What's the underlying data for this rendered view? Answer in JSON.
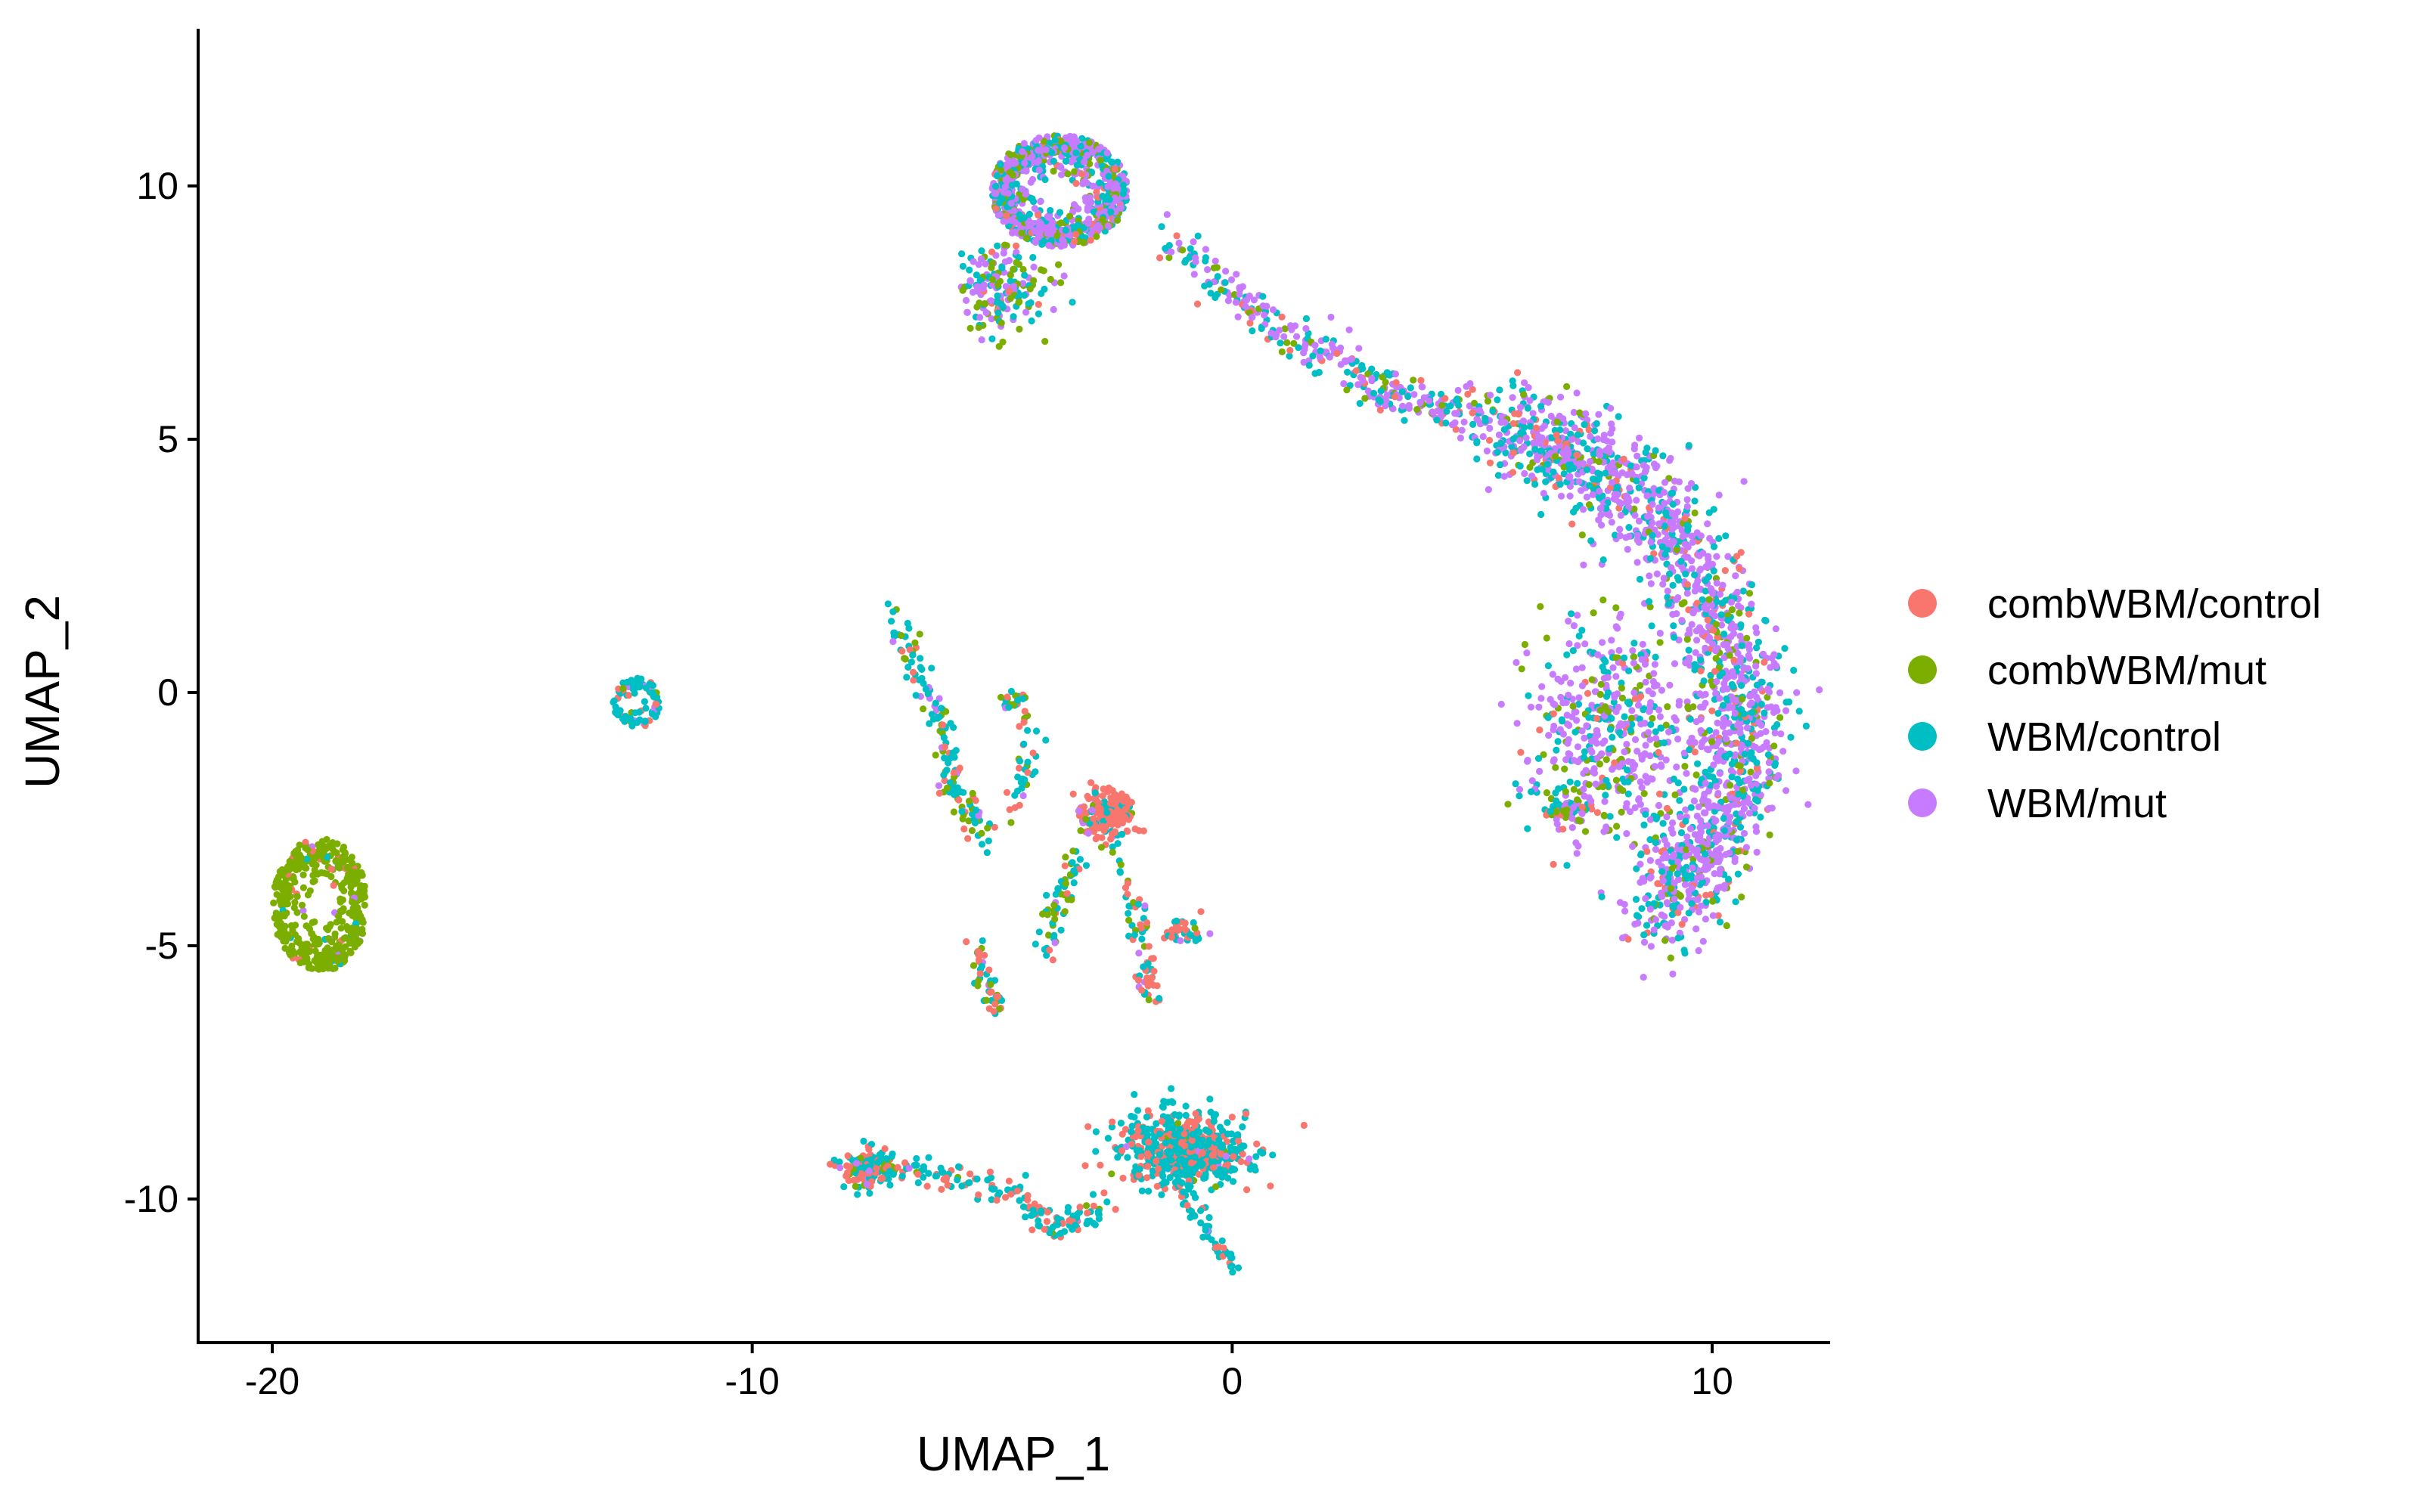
{
  "chart_data": {
    "type": "scatter",
    "title": "",
    "xlabel": "UMAP_1",
    "ylabel": "UMAP_2",
    "xlim": [
      -21.5,
      12.5
    ],
    "ylim": [
      -12.8,
      13.2
    ],
    "xticks": [
      -20,
      -10,
      0,
      10
    ],
    "yticks": [
      -10,
      -5,
      0,
      5,
      10
    ],
    "xtick_labels": [
      "-20",
      "-10",
      "0",
      "10"
    ],
    "ytick_labels": [
      "-10",
      "-5",
      "0",
      "5",
      "10"
    ],
    "grid": false,
    "legend": {
      "position": "right"
    },
    "series": [
      {
        "name": "combWBM/control",
        "color": "#F8766D"
      },
      {
        "name": "combWBM/mut",
        "color": "#7CAE00"
      },
      {
        "name": "WBM/control",
        "color": "#00BFC4"
      },
      {
        "name": "WBM/mut",
        "color": "#C77CFF"
      }
    ],
    "clusters": [
      {
        "id": "top-loop",
        "center": [
          -3.6,
          9.9
        ],
        "spread": [
          1.3,
          1.0
        ],
        "shape": "ring",
        "n": 900,
        "mix": [
          0.05,
          0.15,
          0.3,
          0.5
        ]
      },
      {
        "id": "top-tail",
        "center": [
          -4.8,
          8.0
        ],
        "spread": [
          0.9,
          0.8
        ],
        "shape": "blob",
        "n": 180,
        "mix": [
          0.05,
          0.3,
          0.3,
          0.35
        ]
      },
      {
        "id": "bridge",
        "path": [
          [
            -1.5,
            9.0
          ],
          [
            0.5,
            7.5
          ],
          [
            2.0,
            6.6
          ],
          [
            3.5,
            5.8
          ],
          [
            5.5,
            5.4
          ]
        ],
        "width": 0.35,
        "n": 320,
        "mix": [
          0.08,
          0.12,
          0.3,
          0.5
        ]
      },
      {
        "id": "right-arc",
        "path": [
          [
            5.5,
            5.3
          ],
          [
            7.5,
            4.6
          ],
          [
            9.2,
            3.2
          ],
          [
            10.3,
            1.0
          ],
          [
            10.7,
            -1.0
          ],
          [
            10.0,
            -3.0
          ],
          [
            8.8,
            -4.4
          ]
        ],
        "width": 0.8,
        "n": 1700,
        "mix": [
          0.07,
          0.08,
          0.3,
          0.55
        ]
      },
      {
        "id": "right-inner",
        "center": [
          8.0,
          -0.8
        ],
        "spread": [
          1.6,
          2.0
        ],
        "shape": "blob",
        "n": 500,
        "mix": [
          0.05,
          0.15,
          0.25,
          0.55
        ]
      },
      {
        "id": "right-spur",
        "center": [
          7.0,
          -2.3
        ],
        "spread": [
          0.5,
          0.3
        ],
        "shape": "blob",
        "n": 60,
        "mix": [
          0.1,
          0.3,
          0.3,
          0.3
        ]
      },
      {
        "id": "left-ring",
        "center": [
          -19.0,
          -4.2
        ],
        "spread": [
          0.9,
          1.2
        ],
        "shape": "ring",
        "n": 480,
        "mix": [
          0.03,
          0.92,
          0.02,
          0.03
        ]
      },
      {
        "id": "small-ring",
        "center": [
          -12.4,
          -0.2
        ],
        "spread": [
          0.45,
          0.45
        ],
        "shape": "ring",
        "n": 90,
        "mix": [
          0.1,
          0.05,
          0.75,
          0.1
        ]
      },
      {
        "id": "mid-stream-1",
        "path": [
          [
            -7.0,
            1.5
          ],
          [
            -6.2,
            -0.3
          ],
          [
            -5.8,
            -1.8
          ],
          [
            -5.2,
            -2.8
          ]
        ],
        "width": 0.25,
        "n": 150,
        "mix": [
          0.15,
          0.25,
          0.55,
          0.05
        ]
      },
      {
        "id": "mid-stream-2",
        "path": [
          [
            -4.8,
            -0.2
          ],
          [
            -4.4,
            -0.1
          ],
          [
            -4.2,
            -1.0
          ],
          [
            -4.6,
            -2.5
          ]
        ],
        "width": 0.2,
        "n": 60,
        "mix": [
          0.2,
          0.2,
          0.55,
          0.05
        ]
      },
      {
        "id": "mid-red-blob",
        "center": [
          -2.6,
          -2.4
        ],
        "spread": [
          0.5,
          0.45
        ],
        "shape": "blob",
        "n": 190,
        "mix": [
          0.7,
          0.1,
          0.15,
          0.05
        ]
      },
      {
        "id": "mid-stream-3",
        "path": [
          [
            -3.2,
            -3.2
          ],
          [
            -3.6,
            -4.2
          ],
          [
            -3.9,
            -5.2
          ]
        ],
        "width": 0.2,
        "n": 60,
        "mix": [
          0.15,
          0.4,
          0.4,
          0.05
        ]
      },
      {
        "id": "mid-stream-4",
        "path": [
          [
            -2.4,
            -3.2
          ],
          [
            -2.0,
            -4.3
          ],
          [
            -1.8,
            -5.5
          ],
          [
            -1.7,
            -6.0
          ]
        ],
        "width": 0.2,
        "n": 70,
        "mix": [
          0.5,
          0.1,
          0.35,
          0.05
        ]
      },
      {
        "id": "mid-stream-5",
        "path": [
          [
            -5.3,
            -5.0
          ],
          [
            -5.1,
            -5.8
          ],
          [
            -4.9,
            -6.3
          ]
        ],
        "width": 0.18,
        "n": 50,
        "mix": [
          0.3,
          0.2,
          0.45,
          0.05
        ]
      },
      {
        "id": "mid-right-bit",
        "center": [
          -1.0,
          -4.7
        ],
        "spread": [
          0.4,
          0.25
        ],
        "shape": "blob",
        "n": 40,
        "mix": [
          0.35,
          0.05,
          0.55,
          0.05
        ]
      },
      {
        "id": "bottom-left",
        "center": [
          -7.6,
          -9.4
        ],
        "spread": [
          0.5,
          0.35
        ],
        "shape": "blob",
        "n": 140,
        "mix": [
          0.35,
          0.1,
          0.5,
          0.05
        ]
      },
      {
        "id": "bottom-stream",
        "path": [
          [
            -7.2,
            -9.5
          ],
          [
            -5.9,
            -9.5
          ],
          [
            -4.6,
            -9.9
          ],
          [
            -3.6,
            -10.6
          ],
          [
            -2.6,
            -10.1
          ]
        ],
        "width": 0.25,
        "n": 160,
        "mix": [
          0.35,
          0.03,
          0.6,
          0.02
        ]
      },
      {
        "id": "bottom-loop",
        "center": [
          -1.0,
          -9.0
        ],
        "spread": [
          1.2,
          0.65
        ],
        "shape": "blob",
        "n": 560,
        "mix": [
          0.3,
          0.02,
          0.66,
          0.02
        ]
      },
      {
        "id": "bottom-tail",
        "path": [
          [
            -1.1,
            -9.8
          ],
          [
            -0.5,
            -10.7
          ],
          [
            0.1,
            -11.5
          ]
        ],
        "width": 0.15,
        "n": 50,
        "mix": [
          0.2,
          0.02,
          0.76,
          0.02
        ]
      }
    ]
  }
}
